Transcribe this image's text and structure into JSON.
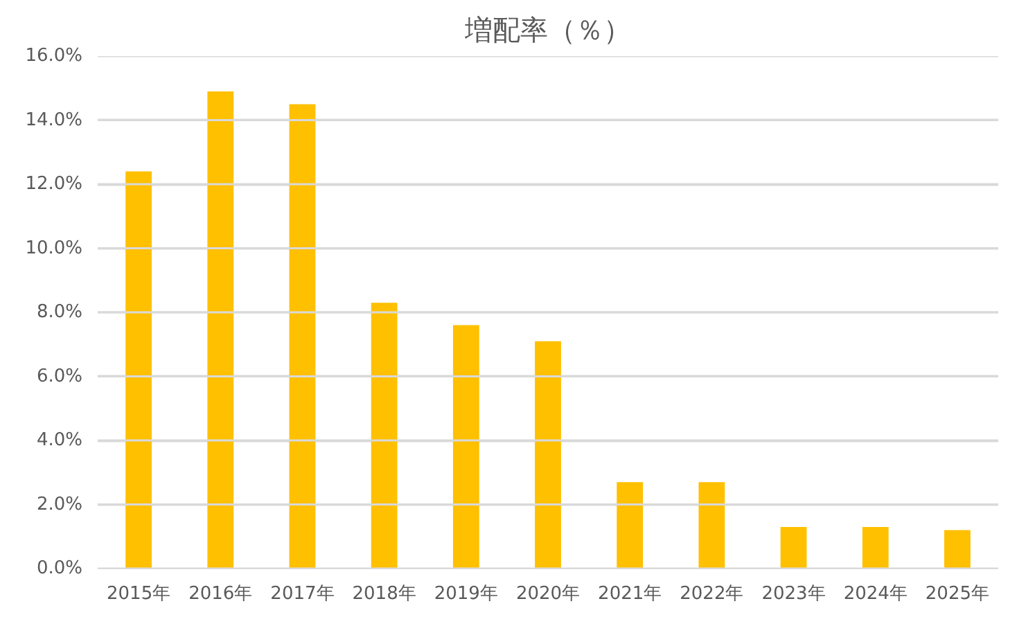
{
  "chart_data": {
    "type": "bar",
    "title": "増配率（％）",
    "categories": [
      "2015年",
      "2016年",
      "2017年",
      "2018年",
      "2019年",
      "2020年",
      "2021年",
      "2022年",
      "2023年",
      "2024年",
      "2025年"
    ],
    "values": [
      12.4,
      14.9,
      14.5,
      8.3,
      7.6,
      7.1,
      2.7,
      2.7,
      1.3,
      1.3,
      1.2
    ],
    "color": "#ffc000",
    "ylim": [
      0,
      16
    ],
    "yticks": [
      {
        "value": 0,
        "label": "0.0%"
      },
      {
        "value": 2,
        "label": "2.0%"
      },
      {
        "value": 4,
        "label": "4.0%"
      },
      {
        "value": 6,
        "label": "6.0%"
      },
      {
        "value": 8,
        "label": "8.0%"
      },
      {
        "value": 10,
        "label": "10.0%"
      },
      {
        "value": 12,
        "label": "12.0%"
      },
      {
        "value": 14,
        "label": "14.0%"
      },
      {
        "value": 16,
        "label": "16.0%"
      }
    ],
    "grid": "y"
  }
}
